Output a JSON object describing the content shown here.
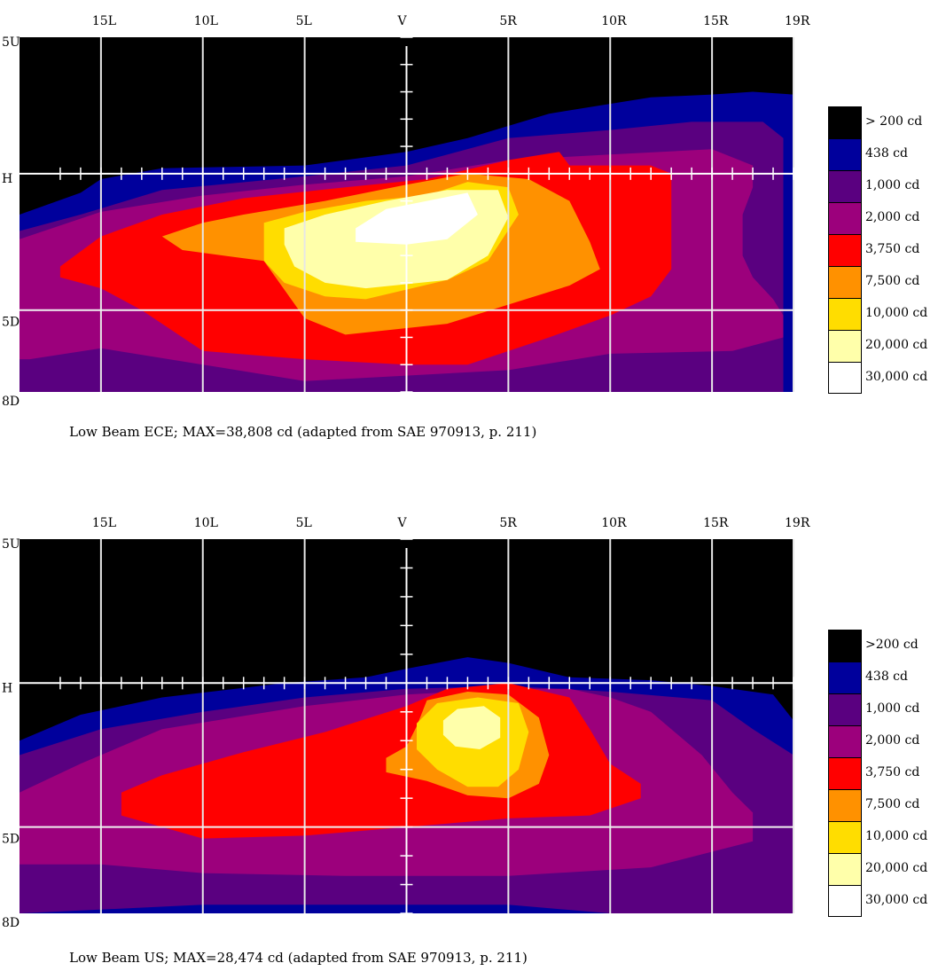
{
  "chart_data": [
    {
      "type": "heatmap",
      "title": "",
      "caption": "Low Beam ECE; MAX=38,808 cd (adapted from SAE 970913, p. 211)",
      "x_ticks": [
        "15L",
        "10L",
        "5L",
        "V",
        "5R",
        "10R",
        "15R",
        "19R"
      ],
      "x_tick_values": [
        -15,
        -10,
        -5,
        0,
        5,
        10,
        15,
        19
      ],
      "y_ticks": [
        "5U",
        "H",
        "5D",
        "8D"
      ],
      "y_tick_values": [
        5,
        0,
        -5,
        -8
      ],
      "xlim": [
        -19,
        19
      ],
      "ylim": [
        -8,
        5
      ],
      "grid": true,
      "legend_position": "right",
      "legend": [
        "> 200 cd",
        "438 cd",
        "1,000 cd",
        "2,000 cd",
        "3,750 cd",
        "7,500 cd",
        "10,000 cd",
        "20,000 cd",
        "30,000 cd"
      ],
      "max_cd": 38808,
      "contours": [
        {
          "level": "438 cd",
          "color": "#00009c",
          "points": [
            [
              -19,
              -1.5
            ],
            [
              -16,
              -0.7
            ],
            [
              -15,
              -0.2
            ],
            [
              -12,
              0.2
            ],
            [
              -5,
              0.3
            ],
            [
              0,
              0.8
            ],
            [
              3,
              1.3
            ],
            [
              7,
              2.2
            ],
            [
              12,
              2.8
            ],
            [
              15,
              2.9
            ],
            [
              17,
              3.0
            ],
            [
              19,
              2.9
            ],
            [
              19,
              -8
            ],
            [
              -19,
              -8
            ]
          ]
        },
        {
          "level": "1,000 cd",
          "color": "#5a0080",
          "points": [
            [
              -19,
              -2.1
            ],
            [
              -16,
              -1.5
            ],
            [
              -12,
              -0.6
            ],
            [
              -5,
              -0.1
            ],
            [
              0,
              0.3
            ],
            [
              5,
              1.3
            ],
            [
              10,
              1.6
            ],
            [
              14,
              1.9
            ],
            [
              17.5,
              1.9
            ],
            [
              18.5,
              1.3
            ],
            [
              18.5,
              -8
            ],
            [
              -19,
              -8
            ]
          ]
        },
        {
          "level": "2,000 cd",
          "color": "#9c007c",
          "points": [
            [
              -19,
              -2.4
            ],
            [
              -15,
              -1.4
            ],
            [
              -10,
              -0.8
            ],
            [
              -5,
              -0.4
            ],
            [
              0,
              -0.1
            ],
            [
              5,
              0.5
            ],
            [
              10,
              0.7
            ],
            [
              15,
              0.9
            ],
            [
              17,
              0.3
            ],
            [
              17,
              -0.5
            ],
            [
              16.5,
              -1.5
            ],
            [
              16.5,
              -3.0
            ],
            [
              17,
              -3.8
            ],
            [
              18,
              -4.6
            ],
            [
              18.5,
              -5.2
            ],
            [
              18.5,
              -6.0
            ],
            [
              16,
              -6.5
            ],
            [
              10,
              -6.6
            ],
            [
              5,
              -7.2
            ],
            [
              -5,
              -7.6
            ],
            [
              -10,
              -7.0
            ],
            [
              -15,
              -6.4
            ],
            [
              -18.5,
              -6.8
            ],
            [
              -19,
              -6.8
            ]
          ]
        },
        {
          "level": "3,750 cd",
          "color": "#ff0000",
          "points": [
            [
              -17,
              -3.4
            ],
            [
              -15,
              -2.3
            ],
            [
              -12,
              -1.5
            ],
            [
              -8,
              -0.9
            ],
            [
              -3,
              -0.5
            ],
            [
              1,
              -0.2
            ],
            [
              5,
              0.5
            ],
            [
              7.5,
              0.8
            ],
            [
              8,
              0.3
            ],
            [
              12,
              0.3
            ],
            [
              13,
              0
            ],
            [
              13,
              -3.5
            ],
            [
              12,
              -4.5
            ],
            [
              10,
              -5.2
            ],
            [
              7,
              -6.0
            ],
            [
              3,
              -7.0
            ],
            [
              0,
              -7.0
            ],
            [
              -5,
              -6.8
            ],
            [
              -10,
              -6.5
            ],
            [
              -13,
              -5.0
            ],
            [
              -15,
              -4.2
            ],
            [
              -17,
              -3.8
            ]
          ]
        },
        {
          "level": "7,500 cd",
          "color": "#ff9100",
          "points": [
            [
              -12,
              -2.3
            ],
            [
              -10,
              -1.8
            ],
            [
              -8,
              -1.5
            ],
            [
              -4,
              -1.0
            ],
            [
              0,
              -0.4
            ],
            [
              3,
              0
            ],
            [
              6,
              -0.2
            ],
            [
              8,
              -1.0
            ],
            [
              9,
              -2.5
            ],
            [
              9.5,
              -3.5
            ],
            [
              8,
              -4.1
            ],
            [
              5,
              -4.8
            ],
            [
              2,
              -5.5
            ],
            [
              -3,
              -5.9
            ],
            [
              -5,
              -5.3
            ],
            [
              -7,
              -3.2
            ],
            [
              -11,
              -2.8
            ]
          ]
        },
        {
          "level": "10,000 cd",
          "color": "#ffdd00",
          "points": [
            [
              -7,
              -1.8
            ],
            [
              -5,
              -1.4
            ],
            [
              -2,
              -1.0
            ],
            [
              1,
              -0.8
            ],
            [
              3,
              -0.3
            ],
            [
              5,
              -0.5
            ],
            [
              5.5,
              -1.5
            ],
            [
              4,
              -3.2
            ],
            [
              2,
              -3.9
            ],
            [
              -2,
              -4.6
            ],
            [
              -4,
              -4.5
            ],
            [
              -6,
              -4.0
            ],
            [
              -7,
              -3.2
            ]
          ]
        },
        {
          "level": "20,000 cd",
          "color": "#ffffaa",
          "points": [
            [
              -6,
              -2.0
            ],
            [
              -4,
              -1.5
            ],
            [
              -1,
              -1.0
            ],
            [
              2,
              -0.6
            ],
            [
              4.5,
              -0.6
            ],
            [
              5,
              -1.6
            ],
            [
              4,
              -3.0
            ],
            [
              2,
              -3.9
            ],
            [
              -2,
              -4.2
            ],
            [
              -4,
              -4.0
            ],
            [
              -5.5,
              -3.4
            ],
            [
              -6,
              -2.6
            ]
          ]
        },
        {
          "level": "30,000 cd",
          "color": "#ffffff",
          "points": [
            [
              -2.5,
              -2.0
            ],
            [
              -1,
              -1.3
            ],
            [
              1,
              -1.0
            ],
            [
              3,
              -0.7
            ],
            [
              3.5,
              -1.5
            ],
            [
              2,
              -2.4
            ],
            [
              0,
              -2.6
            ],
            [
              -2.5,
              -2.5
            ]
          ]
        }
      ]
    },
    {
      "type": "heatmap",
      "title": "",
      "caption": "Low Beam US; MAX=28,474 cd (adapted from SAE 970913, p. 211)",
      "x_ticks": [
        "15L",
        "10L",
        "5L",
        "V",
        "5R",
        "10R",
        "15R",
        "19R"
      ],
      "x_tick_values": [
        -15,
        -10,
        -5,
        0,
        5,
        10,
        15,
        19
      ],
      "y_ticks": [
        "5U",
        "H",
        "5D",
        "8D"
      ],
      "y_tick_values": [
        5,
        0,
        -5,
        -8
      ],
      "xlim": [
        -19,
        19
      ],
      "ylim": [
        -8,
        5
      ],
      "grid": true,
      "legend_position": "right",
      "legend": [
        ">200 cd",
        "438 cd",
        "1,000 cd",
        "2,000 cd",
        "3,750 cd",
        "7,500 cd",
        "10,000 cd",
        "20,000 cd",
        "30,000 cd"
      ],
      "max_cd": 28474,
      "contours": [
        {
          "level": "438 cd",
          "color": "#00009c",
          "points": [
            [
              -19,
              -2.0
            ],
            [
              -16,
              -1.1
            ],
            [
              -12,
              -0.5
            ],
            [
              -6,
              0
            ],
            [
              -2,
              0.2
            ],
            [
              0,
              0.5
            ],
            [
              3,
              0.9
            ],
            [
              5,
              0.7
            ],
            [
              8,
              0.2
            ],
            [
              12,
              0.1
            ],
            [
              15,
              -0.1
            ],
            [
              18,
              -0.4
            ],
            [
              19,
              -1.3
            ],
            [
              19,
              -8
            ],
            [
              -19,
              -8
            ]
          ]
        },
        {
          "level": "1,000 cd",
          "color": "#5a0080",
          "points": [
            [
              -19,
              -2.5
            ],
            [
              -15,
              -1.6
            ],
            [
              -10,
              -1.0
            ],
            [
              -5,
              -0.5
            ],
            [
              0,
              -0.2
            ],
            [
              5,
              -0.1
            ],
            [
              10,
              -0.3
            ],
            [
              15,
              -0.6
            ],
            [
              17,
              -1.6
            ],
            [
              19,
              -2.5
            ],
            [
              19,
              -8
            ],
            [
              10,
              -8
            ],
            [
              5,
              -7.7
            ],
            [
              -5,
              -7.7
            ],
            [
              -10,
              -7.7
            ],
            [
              -19,
              -8
            ]
          ]
        },
        {
          "level": "2,000 cd",
          "color": "#9c007c",
          "points": [
            [
              -19,
              -3.8
            ],
            [
              -16,
              -2.8
            ],
            [
              -12,
              -1.6
            ],
            [
              -5,
              -0.8
            ],
            [
              0,
              -0.4
            ],
            [
              5,
              -0.2
            ],
            [
              8,
              -0.2
            ],
            [
              10,
              -0.5
            ],
            [
              12,
              -1.0
            ],
            [
              14.5,
              -2.5
            ],
            [
              16,
              -3.8
            ],
            [
              17,
              -4.5
            ],
            [
              17,
              -5.5
            ],
            [
              12,
              -6.4
            ],
            [
              5,
              -6.7
            ],
            [
              -3,
              -6.7
            ],
            [
              -10,
              -6.6
            ],
            [
              -15,
              -6.3
            ],
            [
              -19,
              -6.3
            ]
          ]
        },
        {
          "level": "3,750 cd",
          "color": "#ff0000",
          "points": [
            [
              -14,
              -3.8
            ],
            [
              -12,
              -3.2
            ],
            [
              -8,
              -2.4
            ],
            [
              -4,
              -1.7
            ],
            [
              0,
              -0.8
            ],
            [
              2,
              -0.2
            ],
            [
              5,
              0
            ],
            [
              8,
              -0.5
            ],
            [
              9,
              -1.6
            ],
            [
              10,
              -2.8
            ],
            [
              11.5,
              -3.5
            ],
            [
              11.5,
              -4.0
            ],
            [
              9,
              -4.6
            ],
            [
              5,
              -4.7
            ],
            [
              0,
              -5.0
            ],
            [
              -5,
              -5.3
            ],
            [
              -10,
              -5.4
            ],
            [
              -14,
              -4.6
            ]
          ]
        },
        {
          "level": "7,500 cd",
          "color": "#ff9100",
          "points": [
            [
              -1,
              -2.6
            ],
            [
              0,
              -2.2
            ],
            [
              0.5,
              -1.5
            ],
            [
              1,
              -0.6
            ],
            [
              3,
              -0.3
            ],
            [
              5,
              -0.4
            ],
            [
              6.5,
              -1.2
            ],
            [
              7,
              -2.5
            ],
            [
              6.5,
              -3.5
            ],
            [
              5,
              -4.0
            ],
            [
              3,
              -3.9
            ],
            [
              1,
              -3.4
            ],
            [
              -1,
              -3.1
            ]
          ]
        },
        {
          "level": "10,000 cd",
          "color": "#ffdd00",
          "points": [
            [
              0.5,
              -1.4
            ],
            [
              1.5,
              -0.7
            ],
            [
              3.5,
              -0.5
            ],
            [
              5.5,
              -0.7
            ],
            [
              6,
              -1.7
            ],
            [
              5.5,
              -3.0
            ],
            [
              4.5,
              -3.6
            ],
            [
              3,
              -3.6
            ],
            [
              1.5,
              -3.0
            ],
            [
              0.5,
              -2.3
            ]
          ]
        },
        {
          "level": "20,000 cd",
          "color": "#ffffaa",
          "points": [
            [
              1.8,
              -1.3
            ],
            [
              2.5,
              -0.9
            ],
            [
              3.8,
              -0.8
            ],
            [
              4.6,
              -1.2
            ],
            [
              4.6,
              -1.9
            ],
            [
              3.6,
              -2.3
            ],
            [
              2.4,
              -2.2
            ],
            [
              1.8,
              -1.8
            ]
          ]
        }
      ]
    }
  ]
}
